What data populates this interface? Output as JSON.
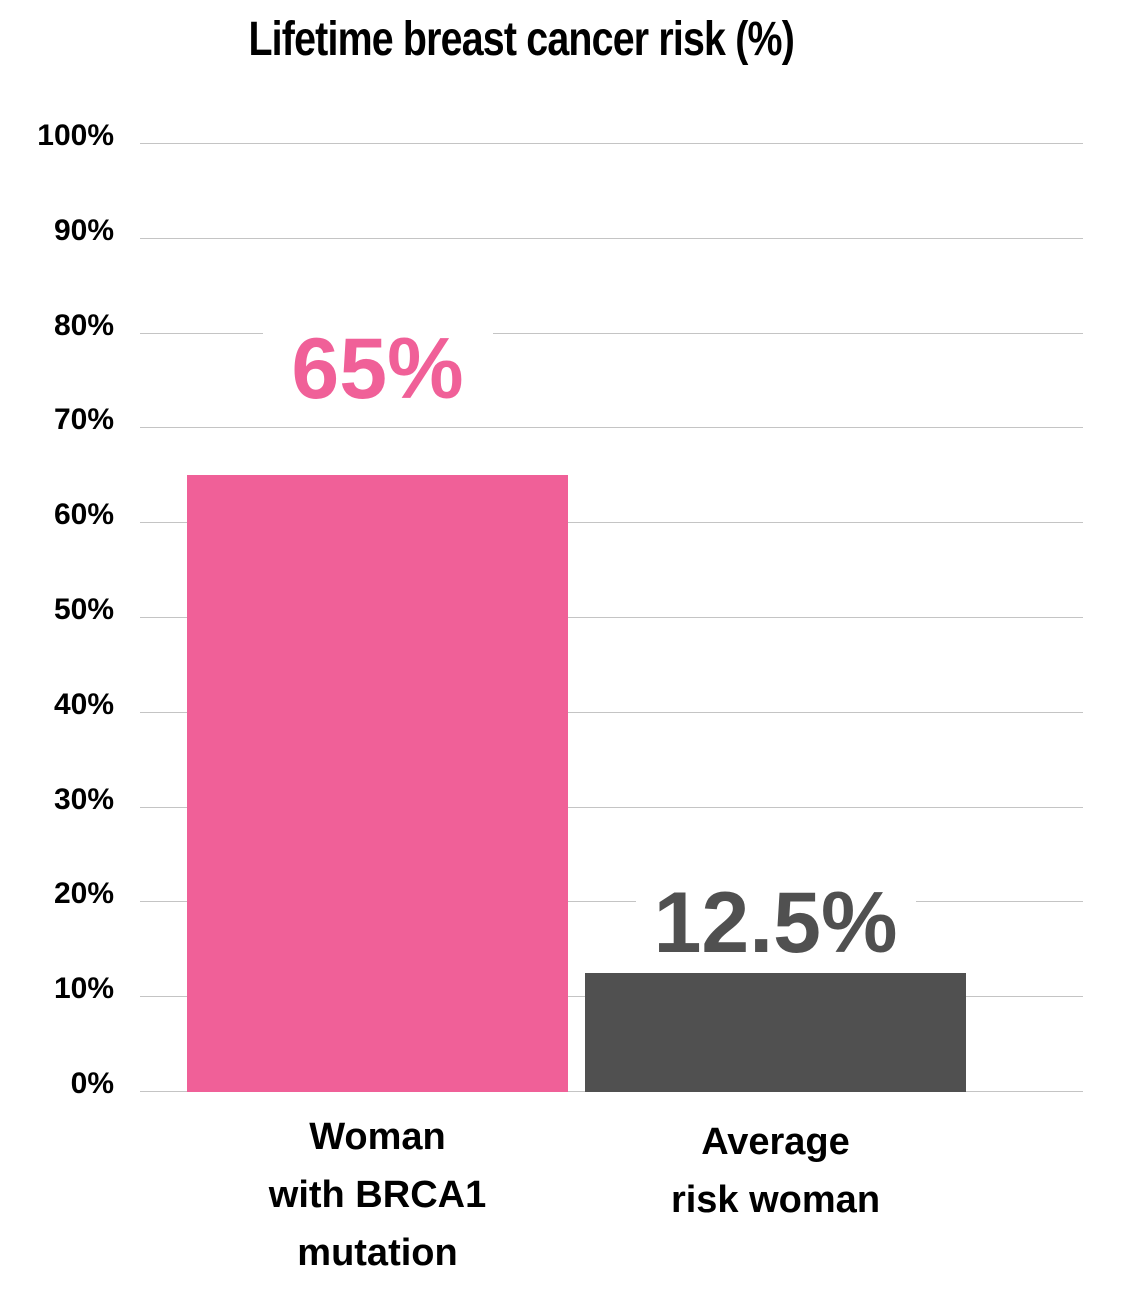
{
  "chart_data": {
    "type": "bar",
    "title": "Lifetime breast cancer risk (%)",
    "xlabel": "",
    "ylabel": "",
    "categories": [
      "Woman\nwith BRCA1\nmutation",
      "Average\nrisk woman"
    ],
    "values": [
      65,
      12.5
    ],
    "value_labels": [
      "65%",
      "12.5%"
    ],
    "colors": [
      "#f06098",
      "#505050"
    ],
    "ylim": [
      0,
      100
    ],
    "yticks": [
      "0%",
      "10%",
      "20%",
      "30%",
      "40%",
      "50%",
      "60%",
      "70%",
      "80%",
      "90%",
      "100%"
    ],
    "grid": true,
    "legend": null
  }
}
